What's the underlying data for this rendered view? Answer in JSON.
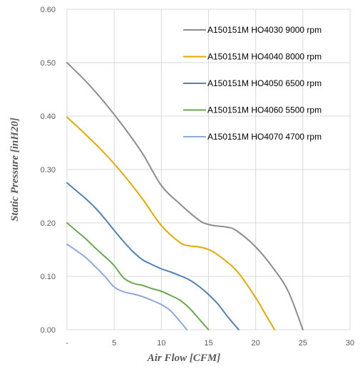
{
  "chart_data": {
    "type": "line",
    "xlabel": "Air Flow [CFM]",
    "ylabel": "Static Pressure [inH20]",
    "xlim": [
      0,
      30
    ],
    "ylim": [
      0,
      0.6
    ],
    "x_ticks": [
      {
        "value": 0,
        "label": "-"
      },
      {
        "value": 5,
        "label": "5"
      },
      {
        "value": 10,
        "label": "10"
      },
      {
        "value": 15,
        "label": "15"
      },
      {
        "value": 20,
        "label": "20"
      },
      {
        "value": 25,
        "label": "25"
      },
      {
        "value": 30,
        "label": "30"
      }
    ],
    "y_ticks": [
      {
        "value": 0,
        "label": "0.00"
      },
      {
        "value": 0.1,
        "label": "0.10"
      },
      {
        "value": 0.2,
        "label": "0.20"
      },
      {
        "value": 0.3,
        "label": "0.30"
      },
      {
        "value": 0.4,
        "label": "0.40"
      },
      {
        "value": 0.5,
        "label": "0.50"
      },
      {
        "value": 0.6,
        "label": "0.60"
      }
    ],
    "grid": true,
    "legend_position": "top-right",
    "series": [
      {
        "name": "A150151M HO4030 9000 rpm",
        "color": "#8c8c8c",
        "x": [
          0,
          2,
          4,
          6,
          8,
          10,
          12,
          14,
          15,
          16,
          17,
          18,
          20,
          22,
          23.5,
          25
        ],
        "y": [
          0.5,
          0.465,
          0.425,
          0.38,
          0.33,
          0.27,
          0.235,
          0.205,
          0.197,
          0.194,
          0.192,
          0.185,
          0.155,
          0.112,
          0.07,
          0.0
        ]
      },
      {
        "name": "A150151M HO4040 8000 rpm",
        "color": "#e6a800",
        "x": [
          0,
          2,
          4,
          6,
          8,
          10,
          12,
          13,
          14,
          15,
          16,
          18,
          20,
          21,
          22
        ],
        "y": [
          0.398,
          0.365,
          0.33,
          0.29,
          0.245,
          0.195,
          0.163,
          0.157,
          0.155,
          0.15,
          0.14,
          0.11,
          0.06,
          0.03,
          0.0
        ]
      },
      {
        "name": "A150151M HO4050 6500 rpm",
        "color": "#4f81b5",
        "x": [
          0,
          1,
          2,
          3,
          4,
          5,
          6,
          7,
          8,
          9,
          10,
          11,
          12,
          13,
          14,
          15,
          16,
          17,
          18.2
        ],
        "y": [
          0.275,
          0.26,
          0.245,
          0.228,
          0.208,
          0.186,
          0.165,
          0.146,
          0.131,
          0.122,
          0.114,
          0.108,
          0.101,
          0.093,
          0.081,
          0.066,
          0.048,
          0.025,
          0.0
        ]
      },
      {
        "name": "A150151M HO4060 5500 rpm",
        "color": "#6aa84f",
        "x": [
          0,
          1,
          2,
          3,
          4,
          5,
          6,
          7,
          8,
          9,
          10,
          11,
          12,
          13,
          14,
          15
        ],
        "y": [
          0.2,
          0.185,
          0.17,
          0.153,
          0.137,
          0.12,
          0.097,
          0.087,
          0.083,
          0.077,
          0.072,
          0.064,
          0.055,
          0.04,
          0.02,
          0.0
        ]
      },
      {
        "name": "A150151M HO4070 4700 rpm",
        "color": "#8fa8d8",
        "x": [
          0,
          1,
          2,
          3,
          4,
          5,
          6,
          7,
          8,
          9,
          10,
          11,
          12,
          12.7
        ],
        "y": [
          0.16,
          0.148,
          0.135,
          0.118,
          0.1,
          0.08,
          0.071,
          0.067,
          0.062,
          0.055,
          0.047,
          0.035,
          0.015,
          0.0
        ]
      }
    ]
  }
}
